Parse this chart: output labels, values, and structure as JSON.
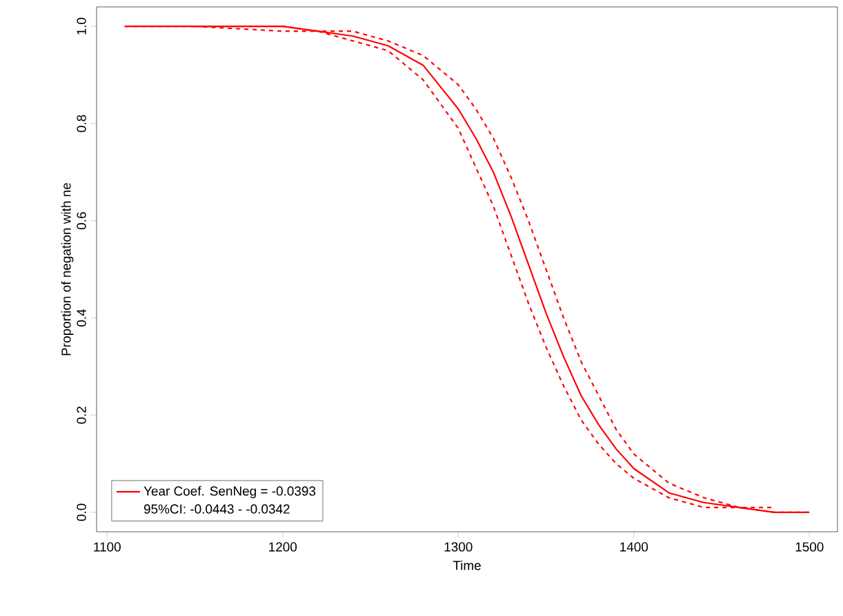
{
  "chart_data": {
    "type": "line",
    "xlabel": "Time",
    "ylabel": "Proportion of negation with ne",
    "x": [
      1110,
      1150,
      1200,
      1220,
      1240,
      1260,
      1280,
      1300,
      1310,
      1320,
      1330,
      1340,
      1350,
      1360,
      1370,
      1380,
      1390,
      1400,
      1420,
      1440,
      1460,
      1480,
      1500
    ],
    "series": [
      {
        "name": "Year Coef. SenNeg = -0.0393",
        "color": "#ff0000",
        "line_style": "solid",
        "values": [
          1.0,
          1.0,
          1.0,
          0.99,
          0.98,
          0.96,
          0.92,
          0.83,
          0.77,
          0.7,
          0.61,
          0.51,
          0.41,
          0.32,
          0.24,
          0.18,
          0.13,
          0.09,
          0.04,
          0.02,
          0.01,
          0.0,
          0.0
        ]
      },
      {
        "color": "#ff0000",
        "line_style": "dashed",
        "x": [
          1150,
          1200,
          1220,
          1240,
          1260,
          1280,
          1300,
          1310,
          1320,
          1330,
          1340,
          1350,
          1360,
          1370,
          1380,
          1390,
          1400,
          1420,
          1440,
          1460,
          1480,
          1500
        ],
        "values": [
          1.0,
          0.99,
          0.99,
          0.97,
          0.95,
          0.89,
          0.79,
          0.71,
          0.63,
          0.53,
          0.43,
          0.34,
          0.26,
          0.19,
          0.14,
          0.1,
          0.07,
          0.03,
          0.01,
          0.01,
          0.0,
          0.0
        ]
      },
      {
        "color": "#ff0000",
        "line_style": "dashed",
        "x": [
          1110,
          1150,
          1200,
          1220,
          1240,
          1260,
          1280,
          1300,
          1310,
          1320,
          1330,
          1340,
          1350,
          1360,
          1370,
          1380,
          1390,
          1400,
          1420,
          1440,
          1460,
          1480
        ],
        "values": [
          1.0,
          1.0,
          1.0,
          0.99,
          0.99,
          0.97,
          0.94,
          0.88,
          0.83,
          0.77,
          0.69,
          0.6,
          0.5,
          0.4,
          0.31,
          0.24,
          0.17,
          0.12,
          0.06,
          0.03,
          0.01,
          0.01
        ]
      }
    ],
    "annotations": [
      "95%CI:  -0.0443 - -0.0342"
    ],
    "xlim": [
      1094,
      1516
    ],
    "ylim": [
      -0.04,
      1.04
    ],
    "xticks": [
      1100,
      1200,
      1300,
      1400,
      1500
    ],
    "yticks": [
      {
        "value": 0,
        "label": "0.0"
      },
      {
        "value": 0.2,
        "label": "0.2"
      },
      {
        "value": 0.4,
        "label": "0.4"
      },
      {
        "value": 0.6,
        "label": "0.6"
      },
      {
        "value": 0.8,
        "label": "0.8"
      },
      {
        "value": 1,
        "label": "1.0"
      }
    ],
    "grid": false,
    "legend": "bottom left",
    "marker": "none"
  }
}
